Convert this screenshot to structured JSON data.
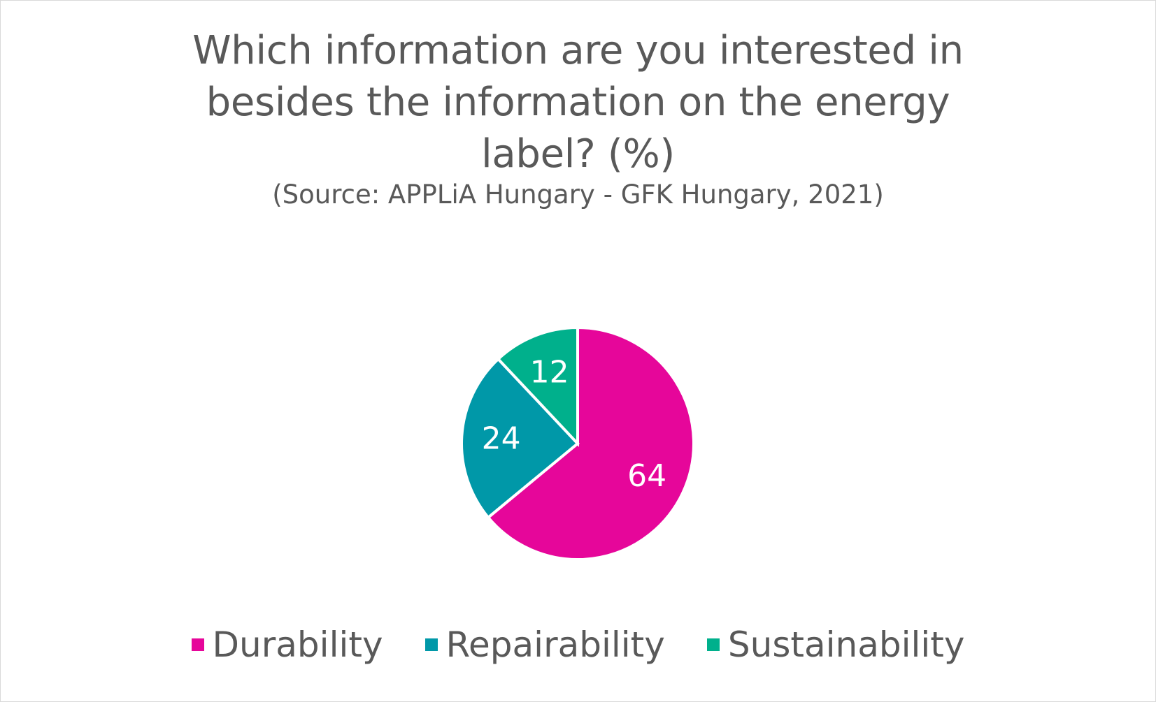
{
  "chart_data": {
    "type": "pie",
    "title": "Which information are you interested in besides the information on the energy label? (%)",
    "title_lines": [
      "Which information are you interested in",
      "besides the information on the energy",
      "label? (%)"
    ],
    "subtitle": "(Source: APPLiA Hungary - GFK Hungary, 2021)",
    "legend_position": "bottom",
    "categories": [
      "Durability",
      "Repairability",
      "Sustainability"
    ],
    "values": [
      64,
      24,
      12
    ],
    "data_labels": [
      "64",
      "24",
      "12"
    ],
    "colors": [
      "#e6069a",
      "#0098a8",
      "#00b08c"
    ]
  }
}
